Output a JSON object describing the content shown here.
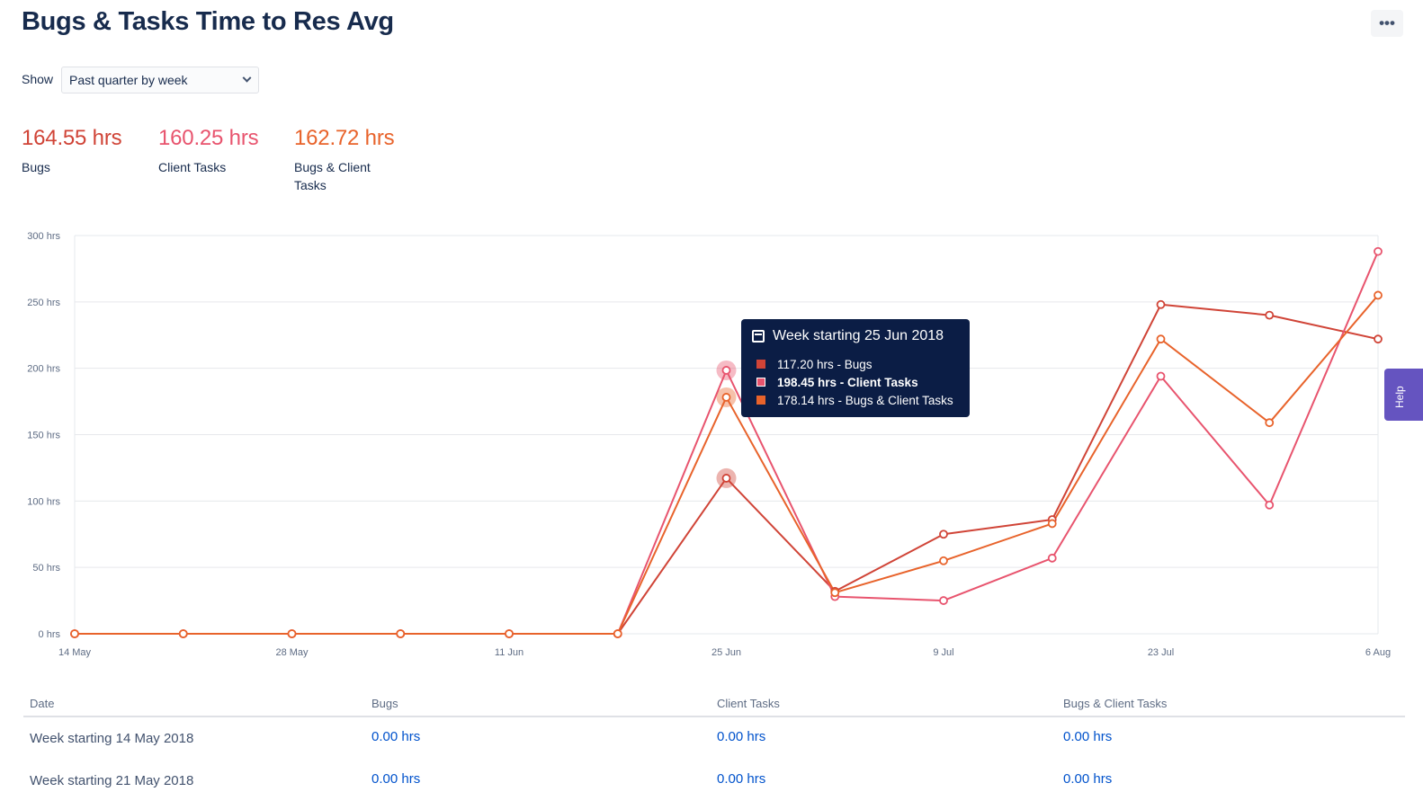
{
  "header": {
    "title": "Bugs & Tasks Time to Res Avg",
    "more_label": "•••"
  },
  "filter": {
    "label": "Show",
    "selected": "Past quarter by week"
  },
  "summary": [
    {
      "value": "164.55 hrs",
      "label": "Bugs",
      "color": "#d04437"
    },
    {
      "value": "160.25 hrs",
      "label": "Client Tasks",
      "color": "#e8546e"
    },
    {
      "value": "162.72 hrs",
      "label": "Bugs & Client Tasks",
      "color": "#e8632b"
    }
  ],
  "chart_data": {
    "type": "line",
    "x_tick_labels": [
      "14 May",
      "28 May",
      "11 Jun",
      "25 Jun",
      "9 Jul",
      "23 Jul",
      "6 Aug"
    ],
    "x": [
      "14 May",
      "21 May",
      "28 May",
      "4 Jun",
      "11 Jun",
      "18 Jun",
      "25 Jun",
      "2 Jul",
      "9 Jul",
      "16 Jul",
      "23 Jul",
      "30 Jul",
      "6 Aug"
    ],
    "y_ticks": [
      "0 hrs",
      "50 hrs",
      "100 hrs",
      "150 hrs",
      "200 hrs",
      "250 hrs",
      "300 hrs"
    ],
    "ylim": [
      0,
      300
    ],
    "grid": true,
    "series": [
      {
        "color": "#d04437",
        "values": [
          0,
          0,
          0,
          0,
          0,
          0,
          117.2,
          32,
          75,
          86,
          248,
          240,
          222
        ]
      },
      {
        "color": "#e8546e",
        "values": [
          0,
          0,
          0,
          0,
          0,
          0,
          198.45,
          28,
          25,
          57,
          194,
          97,
          288
        ]
      },
      {
        "color": "#e8632b",
        "values": [
          0,
          0,
          0,
          0,
          0,
          0,
          178.14,
          31,
          55,
          83,
          222,
          159,
          255
        ]
      }
    ],
    "highlight_index": 6
  },
  "tooltip": {
    "title": "Week starting 25 Jun 2018",
    "rows": [
      {
        "text": "117.20 hrs - Bugs",
        "color": "#d04437"
      },
      {
        "text": "198.45 hrs - Client Tasks",
        "color": "#e8546e"
      },
      {
        "text": "178.14 hrs - Bugs & Client Tasks",
        "color": "#e8632b"
      }
    ]
  },
  "help": {
    "label": "Help"
  },
  "table": {
    "headers": [
      "Date",
      "Bugs",
      "Client Tasks",
      "Bugs & Client Tasks"
    ],
    "rows": [
      {
        "date": "Week starting 14 May 2018",
        "bugs": "0.00 hrs",
        "client": "0.00 hrs",
        "both": "0.00 hrs"
      },
      {
        "date": "Week starting 21 May 2018",
        "bugs": "0.00 hrs",
        "client": "0.00 hrs",
        "both": "0.00 hrs"
      }
    ]
  }
}
